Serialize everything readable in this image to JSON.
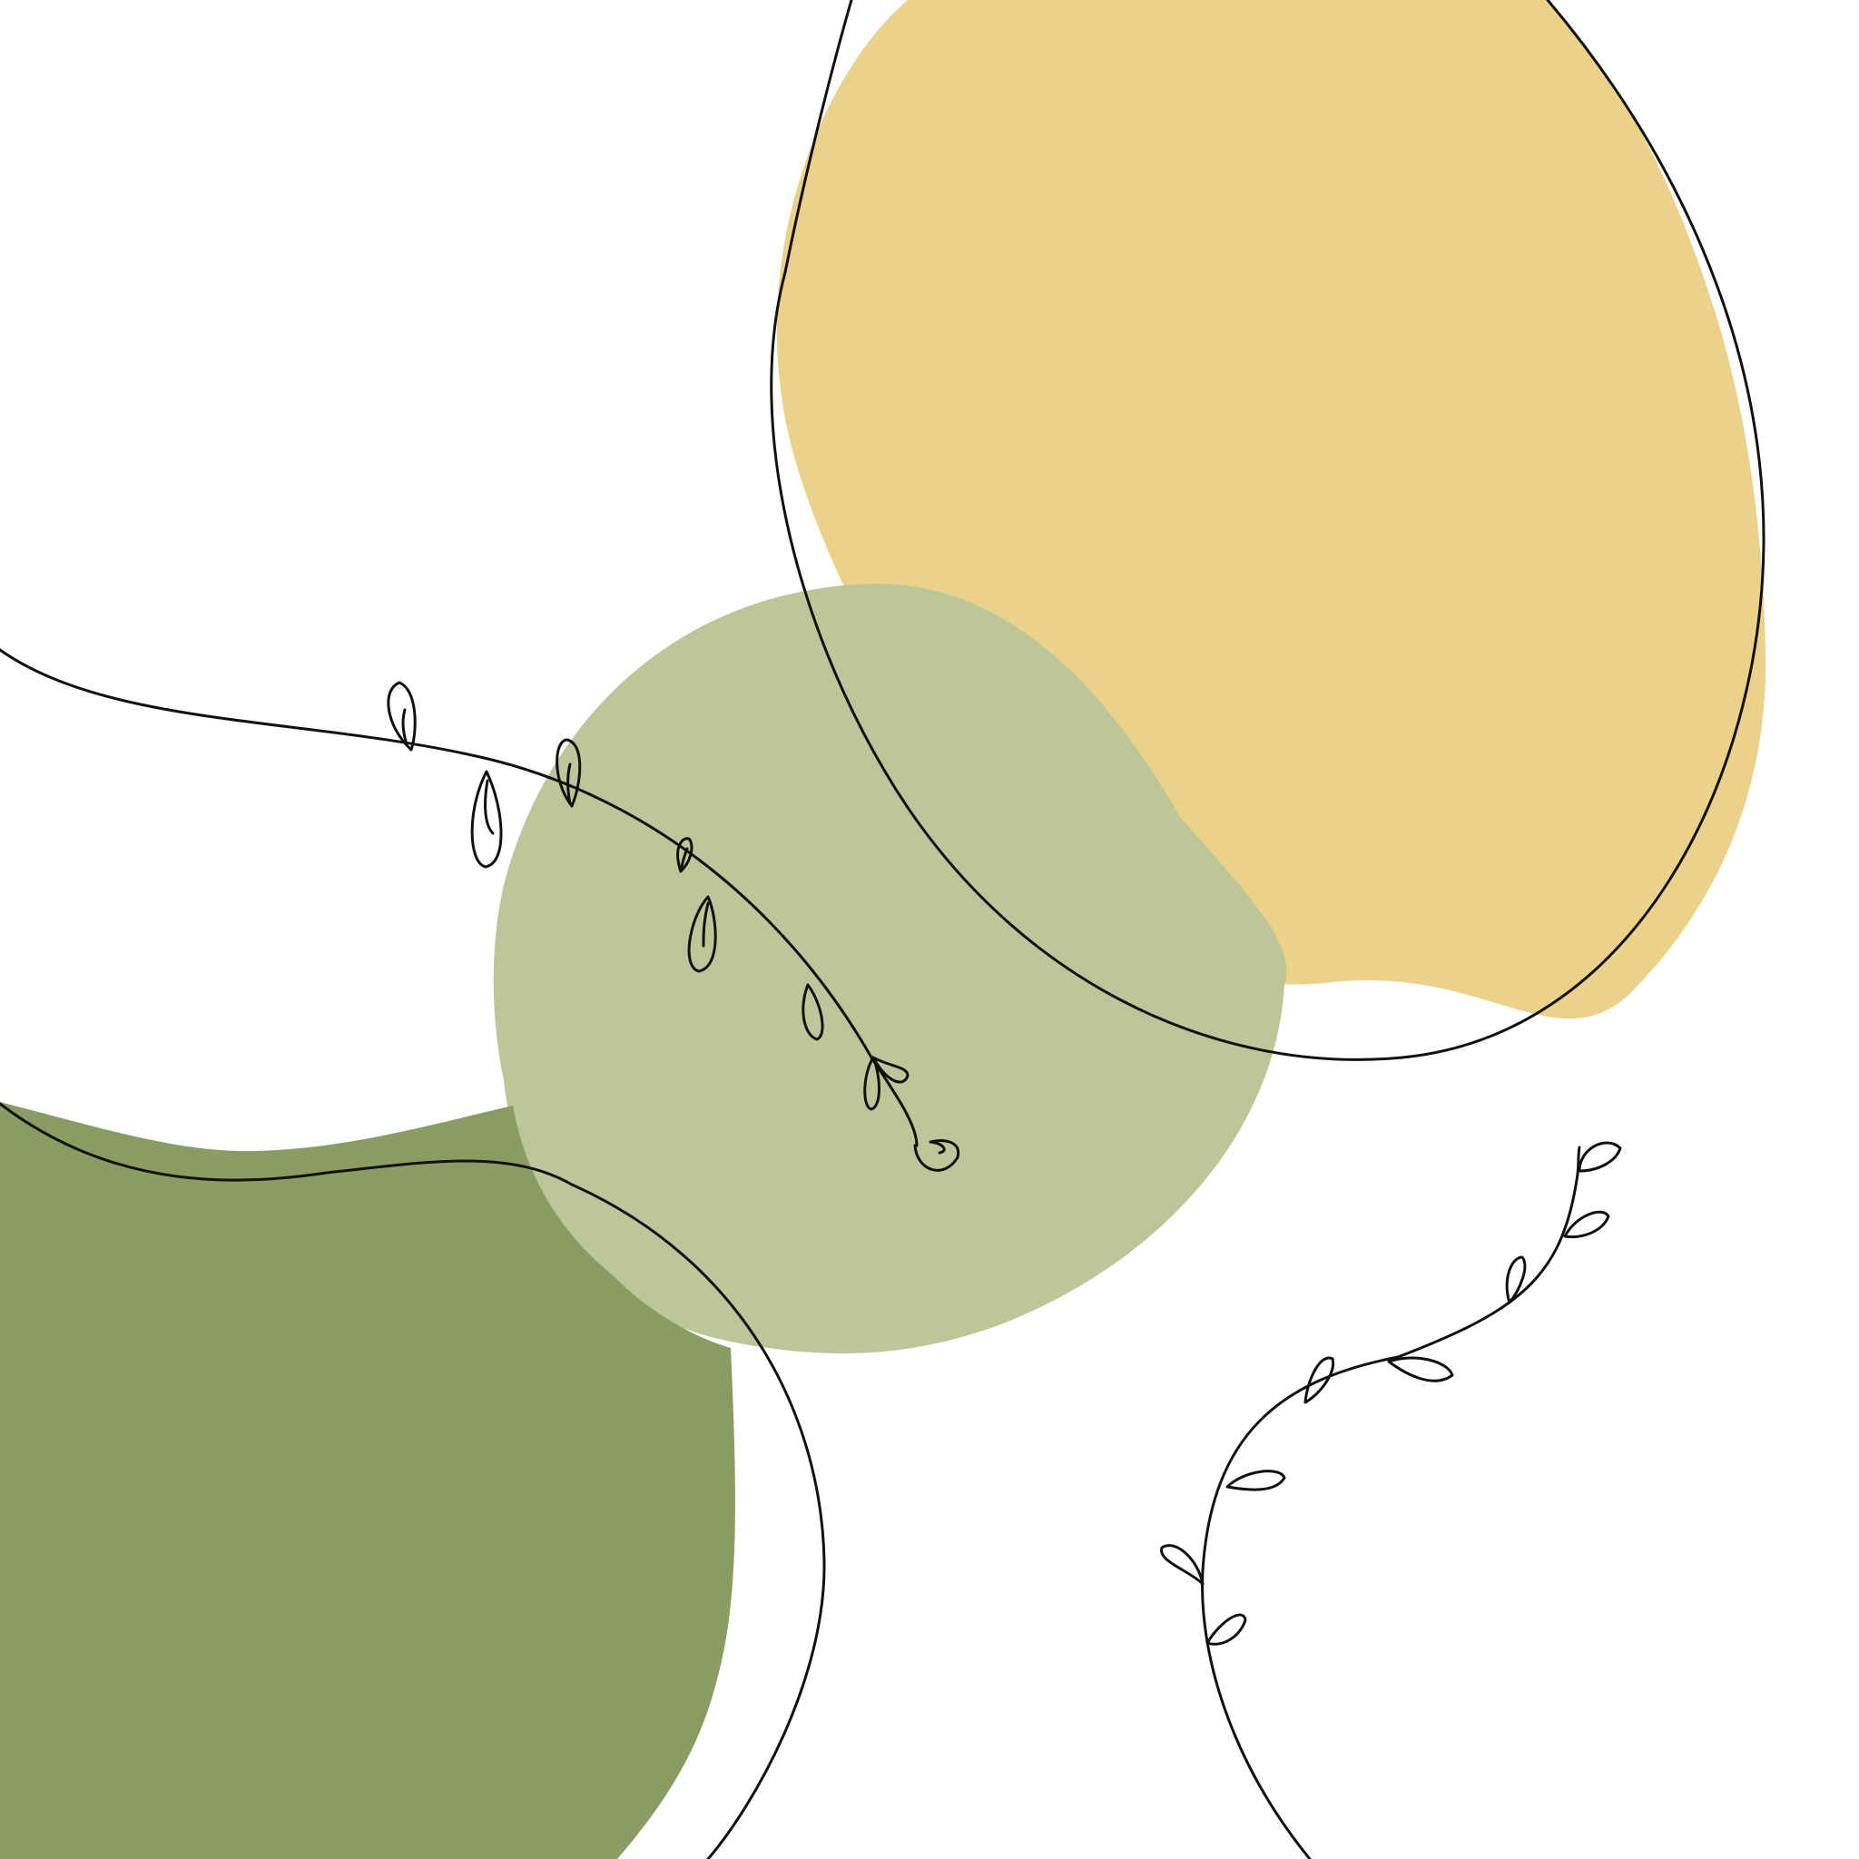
{
  "artwork": {
    "background_color": "#ffffff",
    "shapes": {
      "yellow_blob": {
        "color": "#ead28b"
      },
      "light_green_blob": {
        "color": "#bcc698"
      },
      "olive_green_blob": {
        "color": "#8a9c63"
      }
    },
    "line_art": {
      "stroke_color": "#111111",
      "elements": [
        "oval-outline",
        "bottom-left-arc-outline",
        "leafy-vine-center",
        "leafy-vine-bottom-right"
      ]
    }
  }
}
